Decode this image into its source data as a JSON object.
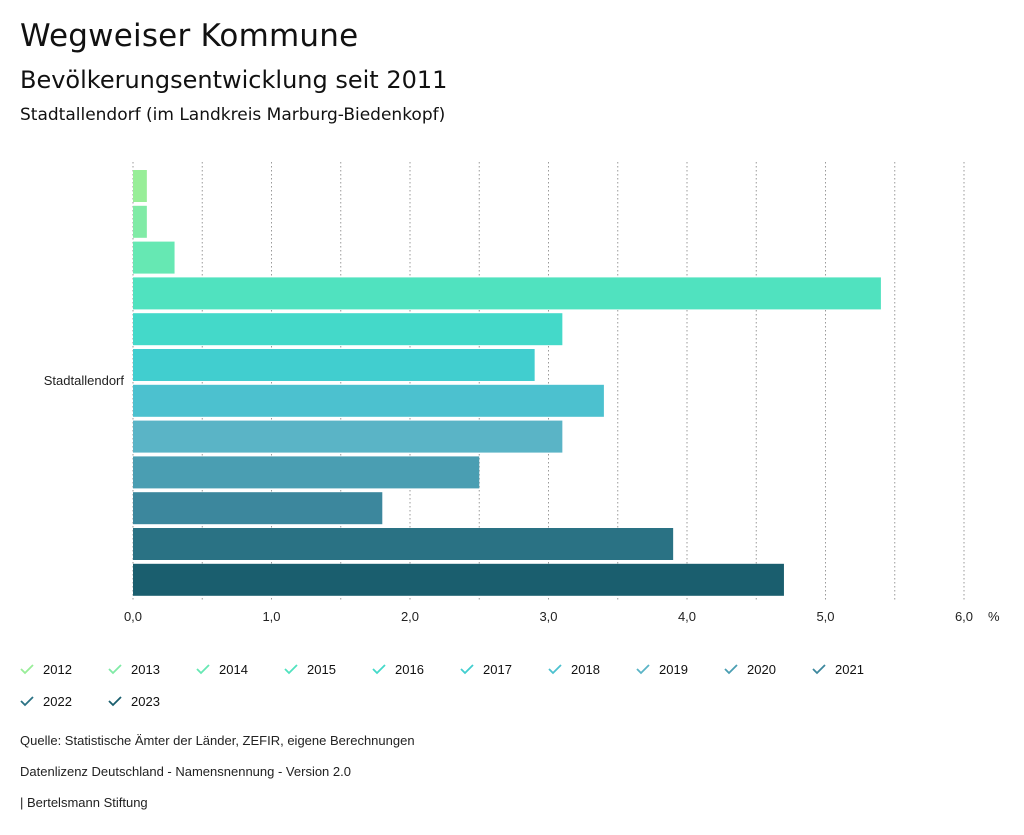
{
  "header": {
    "title": "Wegweiser Kommune",
    "subtitle": "Bevölkerungsentwicklung seit 2011",
    "region": "Stadtallendorf (im Landkreis Marburg-Biedenkopf)"
  },
  "chart_data": {
    "type": "bar",
    "orientation": "horizontal",
    "category": "Stadtallendorf",
    "unit": "%",
    "xlim": [
      0,
      6
    ],
    "ticks": [
      "0,0",
      "1,0",
      "2,0",
      "3,0",
      "4,0",
      "5,0",
      "6,0"
    ],
    "series": [
      {
        "name": "2012",
        "value": 0.1,
        "color": "#98ee98"
      },
      {
        "name": "2013",
        "value": 0.1,
        "color": "#80eba6"
      },
      {
        "name": "2014",
        "value": 0.3,
        "color": "#66e8b3"
      },
      {
        "name": "2015",
        "value": 5.4,
        "color": "#50e2bf"
      },
      {
        "name": "2016",
        "value": 3.1,
        "color": "#44d9c9"
      },
      {
        "name": "2017",
        "value": 2.9,
        "color": "#41cecf"
      },
      {
        "name": "2018",
        "value": 3.4,
        "color": "#4cc1cf"
      },
      {
        "name": "2019",
        "value": 3.1,
        "color": "#5ab4c6"
      },
      {
        "name": "2020",
        "value": 2.5,
        "color": "#4a9eb2"
      },
      {
        "name": "2021",
        "value": 1.8,
        "color": "#3c879d"
      },
      {
        "name": "2022",
        "value": 3.9,
        "color": "#2a7284"
      },
      {
        "name": "2023",
        "value": 4.7,
        "color": "#1a5e6e"
      }
    ]
  },
  "footer": {
    "source": "Quelle: Statistische Ämter der Länder, ZEFIR, eigene Berechnungen",
    "license": "Datenlizenz Deutschland - Namensnennung - Version 2.0",
    "publisher": "| Bertelsmann Stiftung"
  }
}
